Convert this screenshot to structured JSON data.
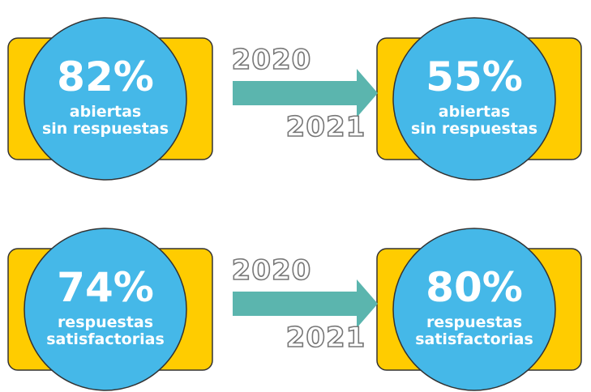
{
  "rows": [
    {
      "from_year": "2020",
      "to_year": "2021",
      "before": {
        "value": "82%",
        "lines": [
          "abiertas",
          "sin respuestas"
        ]
      },
      "after": {
        "value": "55%",
        "lines": [
          "abiertas",
          "sin respuestas"
        ]
      }
    },
    {
      "from_year": "2020",
      "to_year": "2021",
      "before": {
        "value": "74%",
        "lines": [
          "respuestas",
          "satisfactorias"
        ]
      },
      "after": {
        "value": "80%",
        "lines": [
          "respuestas",
          "satisfactorias"
        ]
      }
    }
  ]
}
